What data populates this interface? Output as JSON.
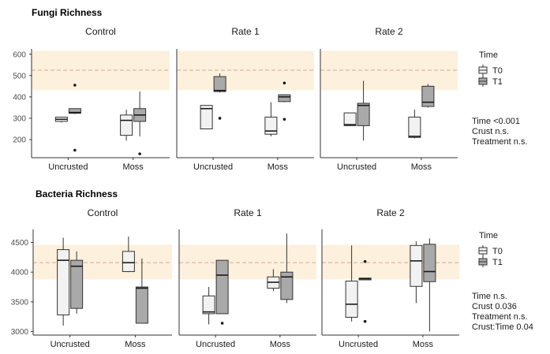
{
  "chart_data": [
    {
      "type": "boxplot",
      "title": "Fungi Richness",
      "facets": [
        "Control",
        "Rate 1",
        "Rate 2"
      ],
      "categories": [
        "Uncrusted",
        "Moss"
      ],
      "groups": [
        "T0",
        "T1"
      ],
      "yticks": [
        200,
        300,
        400,
        500,
        600
      ],
      "ylim": [
        115,
        625
      ],
      "reference_band": [
        432,
        615
      ],
      "reference_line": 525,
      "legend": {
        "title": "Time",
        "entries": [
          "T0",
          "T1"
        ]
      },
      "stats": [
        "Time <0.001",
        "Crust n.s.",
        "Treatment n.s."
      ],
      "boxes": [
        {
          "facet": "Control",
          "category": "Uncrusted",
          "group": "T0",
          "min": 280,
          "q1": 285,
          "median": 295,
          "q3": 305,
          "max": 305,
          "outliers": []
        },
        {
          "facet": "Control",
          "category": "Uncrusted",
          "group": "T1",
          "min": 320,
          "q1": 323,
          "median": 327,
          "q3": 345,
          "max": 345,
          "outliers": [
            455,
            150
          ]
        },
        {
          "facet": "Control",
          "category": "Moss",
          "group": "T0",
          "min": 195,
          "q1": 220,
          "median": 290,
          "q3": 315,
          "max": 340,
          "outliers": []
        },
        {
          "facet": "Control",
          "category": "Moss",
          "group": "T1",
          "min": 215,
          "q1": 285,
          "median": 315,
          "q3": 345,
          "max": 425,
          "outliers": [
            133
          ]
        },
        {
          "facet": "Rate 1",
          "category": "Uncrusted",
          "group": "T0",
          "min": 250,
          "q1": 250,
          "median": 345,
          "q3": 360,
          "max": 360,
          "outliers": []
        },
        {
          "facet": "Rate 1",
          "category": "Uncrusted",
          "group": "T1",
          "min": 420,
          "q1": 425,
          "median": 430,
          "q3": 495,
          "max": 510,
          "outliers": [
            300
          ]
        },
        {
          "facet": "Rate 1",
          "category": "Moss",
          "group": "T0",
          "min": 215,
          "q1": 225,
          "median": 240,
          "q3": 305,
          "max": 375,
          "outliers": []
        },
        {
          "facet": "Rate 1",
          "category": "Moss",
          "group": "T1",
          "min": 375,
          "q1": 378,
          "median": 400,
          "q3": 410,
          "max": 410,
          "outliers": [
            465,
            295
          ]
        },
        {
          "facet": "Rate 2",
          "category": "Uncrusted",
          "group": "T0",
          "min": 265,
          "q1": 265,
          "median": 270,
          "q3": 325,
          "max": 325,
          "outliers": []
        },
        {
          "facet": "Rate 2",
          "category": "Uncrusted",
          "group": "T1",
          "min": 195,
          "q1": 265,
          "median": 360,
          "q3": 370,
          "max": 475,
          "outliers": []
        },
        {
          "facet": "Rate 2",
          "category": "Moss",
          "group": "T0",
          "min": 205,
          "q1": 210,
          "median": 215,
          "q3": 305,
          "max": 340,
          "outliers": []
        },
        {
          "facet": "Rate 2",
          "category": "Moss",
          "group": "T1",
          "min": 350,
          "q1": 355,
          "median": 375,
          "q3": 450,
          "max": 460,
          "outliers": []
        }
      ]
    },
    {
      "type": "boxplot",
      "title": "Bacteria Richness",
      "facets": [
        "Control",
        "Rate 1",
        "Rate 2"
      ],
      "categories": [
        "Uncrusted",
        "Moss"
      ],
      "groups": [
        "T0",
        "T1"
      ],
      "yticks": [
        3000,
        3500,
        4000,
        4500
      ],
      "ylim": [
        2940,
        4720
      ],
      "reference_band": [
        3880,
        4460
      ],
      "reference_line": 4160,
      "legend": {
        "title": "Time",
        "entries": [
          "T0",
          "T1"
        ]
      },
      "stats": [
        "Time n.s.",
        "Crust 0.036",
        "Treatment n.s.",
        "Crust:Time 0.04"
      ],
      "boxes": [
        {
          "facet": "Control",
          "category": "Uncrusted",
          "group": "T0",
          "min": 3100,
          "q1": 3280,
          "median": 4200,
          "q3": 4380,
          "max": 4580,
          "outliers": []
        },
        {
          "facet": "Control",
          "category": "Uncrusted",
          "group": "T1",
          "min": 3300,
          "q1": 3390,
          "median": 4100,
          "q3": 4200,
          "max": 4350,
          "outliers": []
        },
        {
          "facet": "Control",
          "category": "Moss",
          "group": "T0",
          "min": 4000,
          "q1": 4010,
          "median": 4160,
          "q3": 4350,
          "max": 4600,
          "outliers": []
        },
        {
          "facet": "Control",
          "category": "Moss",
          "group": "T1",
          "min": 3140,
          "q1": 3140,
          "median": 3730,
          "q3": 3750,
          "max": 4230,
          "outliers": []
        },
        {
          "facet": "Rate 1",
          "category": "Uncrusted",
          "group": "T0",
          "min": 3120,
          "q1": 3300,
          "median": 3330,
          "q3": 3600,
          "max": 3750,
          "outliers": []
        },
        {
          "facet": "Rate 1",
          "category": "Uncrusted",
          "group": "T1",
          "min": 3300,
          "q1": 3300,
          "median": 3950,
          "q3": 4200,
          "max": 4200,
          "outliers": [
            3140
          ]
        },
        {
          "facet": "Rate 1",
          "category": "Moss",
          "group": "T0",
          "min": 3680,
          "q1": 3730,
          "median": 3830,
          "q3": 3920,
          "max": 4050,
          "outliers": []
        },
        {
          "facet": "Rate 1",
          "category": "Moss",
          "group": "T1",
          "min": 3480,
          "q1": 3540,
          "median": 3920,
          "q3": 4000,
          "max": 4650,
          "outliers": []
        },
        {
          "facet": "Rate 2",
          "category": "Uncrusted",
          "group": "T0",
          "min": 3170,
          "q1": 3240,
          "median": 3460,
          "q3": 3850,
          "max": 4450,
          "outliers": []
        },
        {
          "facet": "Rate 2",
          "category": "Uncrusted",
          "group": "T1",
          "min": 3870,
          "q1": 3870,
          "median": 3890,
          "q3": 3900,
          "max": 3900,
          "outliers": [
            4180,
            3170
          ]
        },
        {
          "facet": "Rate 2",
          "category": "Moss",
          "group": "T0",
          "min": 3480,
          "q1": 3760,
          "median": 4190,
          "q3": 4450,
          "max": 4520,
          "outliers": []
        },
        {
          "facet": "Rate 2",
          "category": "Moss",
          "group": "T1",
          "min": 3000,
          "q1": 3840,
          "median": 4010,
          "q3": 4470,
          "max": 4570,
          "outliers": []
        }
      ]
    }
  ]
}
